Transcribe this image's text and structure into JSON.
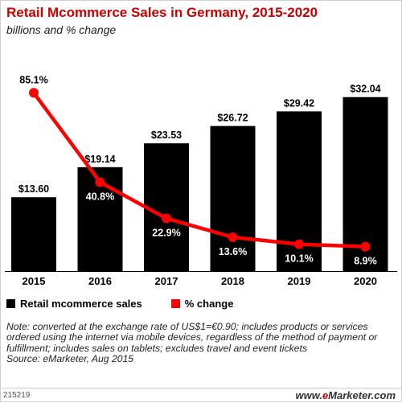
{
  "header": {
    "title": "Retail Mcommerce Sales in Germany, 2015-2020",
    "subtitle": "billions and % change"
  },
  "legend": {
    "sales_label": "Retail mcommerce sales",
    "change_label": "% change"
  },
  "note": {
    "text": "Note: converted at the exchange rate of US$1=€0.90; includes products or services ordered using the internet via mobile devices, regardless of the method of payment or fulfillment; includes sales on tablets; excludes travel and event tickets",
    "source": "Source: eMarketer, Aug 2015"
  },
  "footer": {
    "chart_id": "215219",
    "brand_prefix": "www.",
    "brand_e": "e",
    "brand_rest": "Marketer",
    "brand_suffix": ".com"
  },
  "colors": {
    "bar": "#000000",
    "line": "#ff0000",
    "title": "#cc0000"
  },
  "chart_data": {
    "type": "bar",
    "title": "Retail Mcommerce Sales in Germany, 2015-2020",
    "subtitle": "billions and % change",
    "categories": [
      "2015",
      "2016",
      "2017",
      "2018",
      "2019",
      "2020"
    ],
    "series": [
      {
        "name": "Retail mcommerce sales",
        "type": "bar",
        "values": [
          13.6,
          19.14,
          23.53,
          26.72,
          29.42,
          32.04
        ],
        "labels": [
          "$13.60",
          "$19.14",
          "$23.53",
          "$26.72",
          "$29.42",
          "$32.04"
        ]
      },
      {
        "name": "% change",
        "type": "line",
        "values": [
          85.1,
          40.8,
          22.9,
          13.6,
          10.1,
          8.9
        ],
        "labels": [
          "85.1%",
          "40.8%",
          "22.9%",
          "13.6%",
          "10.1%",
          "8.9%"
        ]
      }
    ],
    "grid": false,
    "legend_position": "bottom-left"
  }
}
